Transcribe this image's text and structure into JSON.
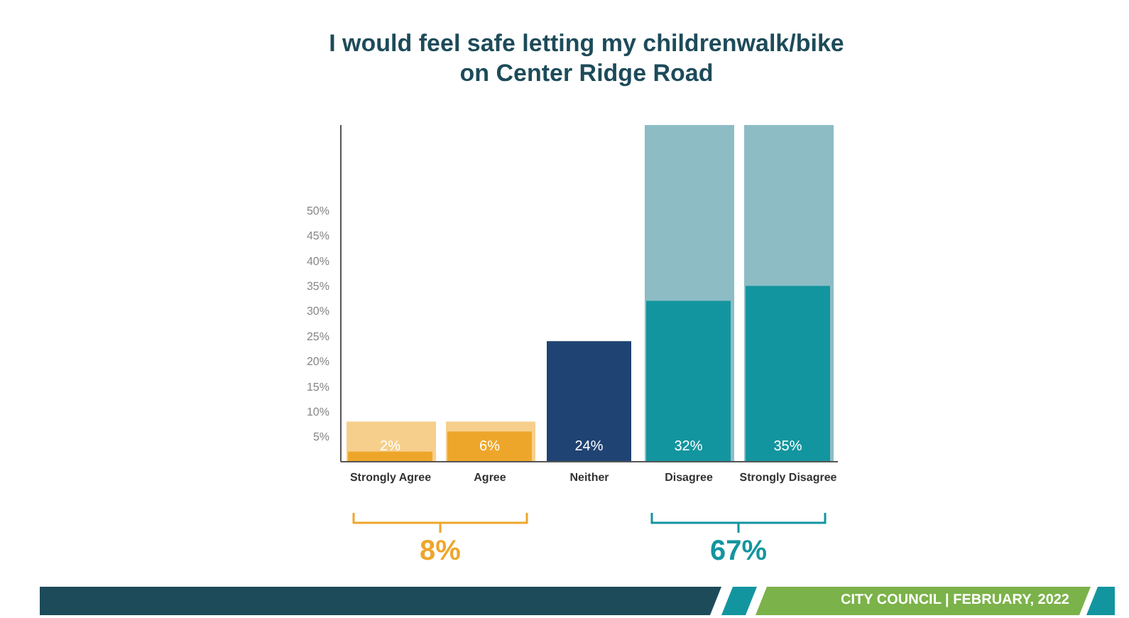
{
  "chart_data": {
    "type": "bar",
    "title": "I would feel safe letting my childrenwalk/bike on Center Ridge Road",
    "categories": [
      "Strongly Agree",
      "Agree",
      "Neither",
      "Disagree",
      "Strongly Disagree"
    ],
    "series": [
      {
        "colors": [
          "#f6cf8c",
          "#f6cf8c",
          null,
          "#8dbcc5",
          "#8dbcc5"
        ],
        "values": [
          8,
          8,
          null,
          67,
          67
        ]
      },
      {
        "colors": [
          "#eea62a",
          "#eea62a",
          "#1f4372",
          "#13959f",
          "#13959f"
        ],
        "values": [
          2,
          6,
          24,
          32,
          35
        ],
        "value_labels": [
          "2%",
          "6%",
          "24%",
          "32%",
          "35%"
        ]
      }
    ],
    "ylim": [
      0,
      67
    ],
    "yticks": [
      {
        "value": 5,
        "label": "5%"
      },
      {
        "value": 10,
        "label": "10%"
      },
      {
        "value": 15,
        "label": "15%"
      },
      {
        "value": 20,
        "label": "20%"
      },
      {
        "value": 25,
        "label": "25%"
      },
      {
        "value": 30,
        "label": "30%"
      },
      {
        "value": 35,
        "label": "35%"
      },
      {
        "value": 40,
        "label": "40%"
      },
      {
        "value": 45,
        "label": "45%"
      },
      {
        "value": 50,
        "label": "50%"
      }
    ],
    "annotations": [
      "8%",
      "67%",
      "CITY COUNCIL | FEBRUARY, 2022"
    ]
  }
}
